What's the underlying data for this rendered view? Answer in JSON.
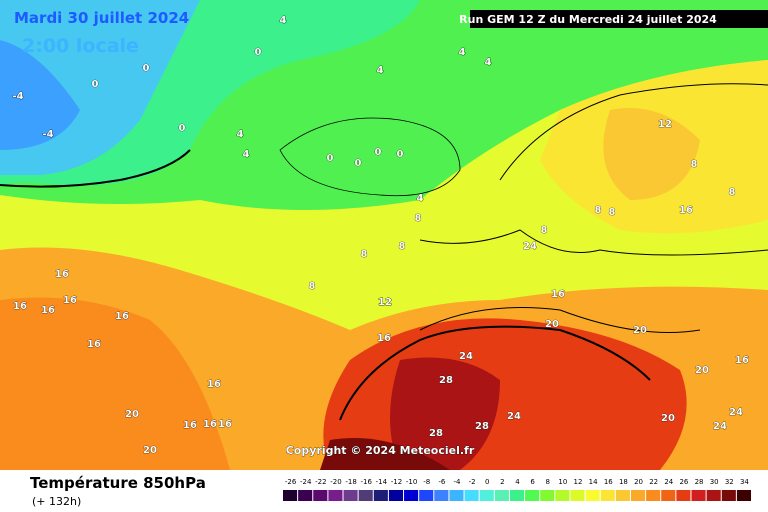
{
  "header": {
    "date": "Mardi 30 juillet 2024",
    "time": "2:00 locale",
    "run": "Run GEM 12 Z du Mercredi 24 juillet 2024"
  },
  "copyright": "Copyright © 2024 Meteociel.fr",
  "footer": {
    "title": "Température 850hPa",
    "lead": "(+ 132h)"
  },
  "legend": {
    "labels": [
      "-26",
      "-24",
      "-22",
      "-20",
      "-18",
      "-16",
      "-14",
      "-12",
      "-10",
      "-8",
      "-6",
      "-4",
      "-2",
      "0",
      "2",
      "4",
      "6",
      "8",
      "10",
      "12",
      "14",
      "16",
      "18",
      "20",
      "22",
      "24",
      "26",
      "28",
      "30",
      "32",
      "34"
    ],
    "colors": [
      "#1e0030",
      "#3c0050",
      "#5a0a6e",
      "#781e8c",
      "#6e3c8c",
      "#503c78",
      "#1e1e78",
      "#0000a0",
      "#0000d2",
      "#1e46ff",
      "#3c82ff",
      "#3cb4ff",
      "#46dcff",
      "#50f0dc",
      "#5af0b4",
      "#3cf08c",
      "#50fa50",
      "#82fa32",
      "#b4fa28",
      "#dcfa28",
      "#fafa32",
      "#fae632",
      "#fac832",
      "#faaa28",
      "#fa8c1e",
      "#f06414",
      "#e63c14",
      "#d21e1e",
      "#aa1414",
      "#780a0a",
      "#3c0000"
    ]
  },
  "contour_labels": [
    "4",
    "0",
    "0",
    "0",
    "4",
    "-4",
    "-4",
    "0",
    "4",
    "4",
    "4",
    "4",
    "0",
    "0",
    "0",
    "0",
    "4",
    "8",
    "8",
    "8",
    "8",
    "12",
    "12",
    "8",
    "8",
    "8",
    "16",
    "16",
    "16",
    "16",
    "16",
    "16",
    "16",
    "20",
    "16",
    "16",
    "16",
    "16",
    "20",
    "24",
    "28",
    "28",
    "24",
    "28",
    "24",
    "20",
    "20",
    "20",
    "16",
    "24",
    "16",
    "20",
    "24",
    "12",
    "16",
    "8",
    "8"
  ]
}
